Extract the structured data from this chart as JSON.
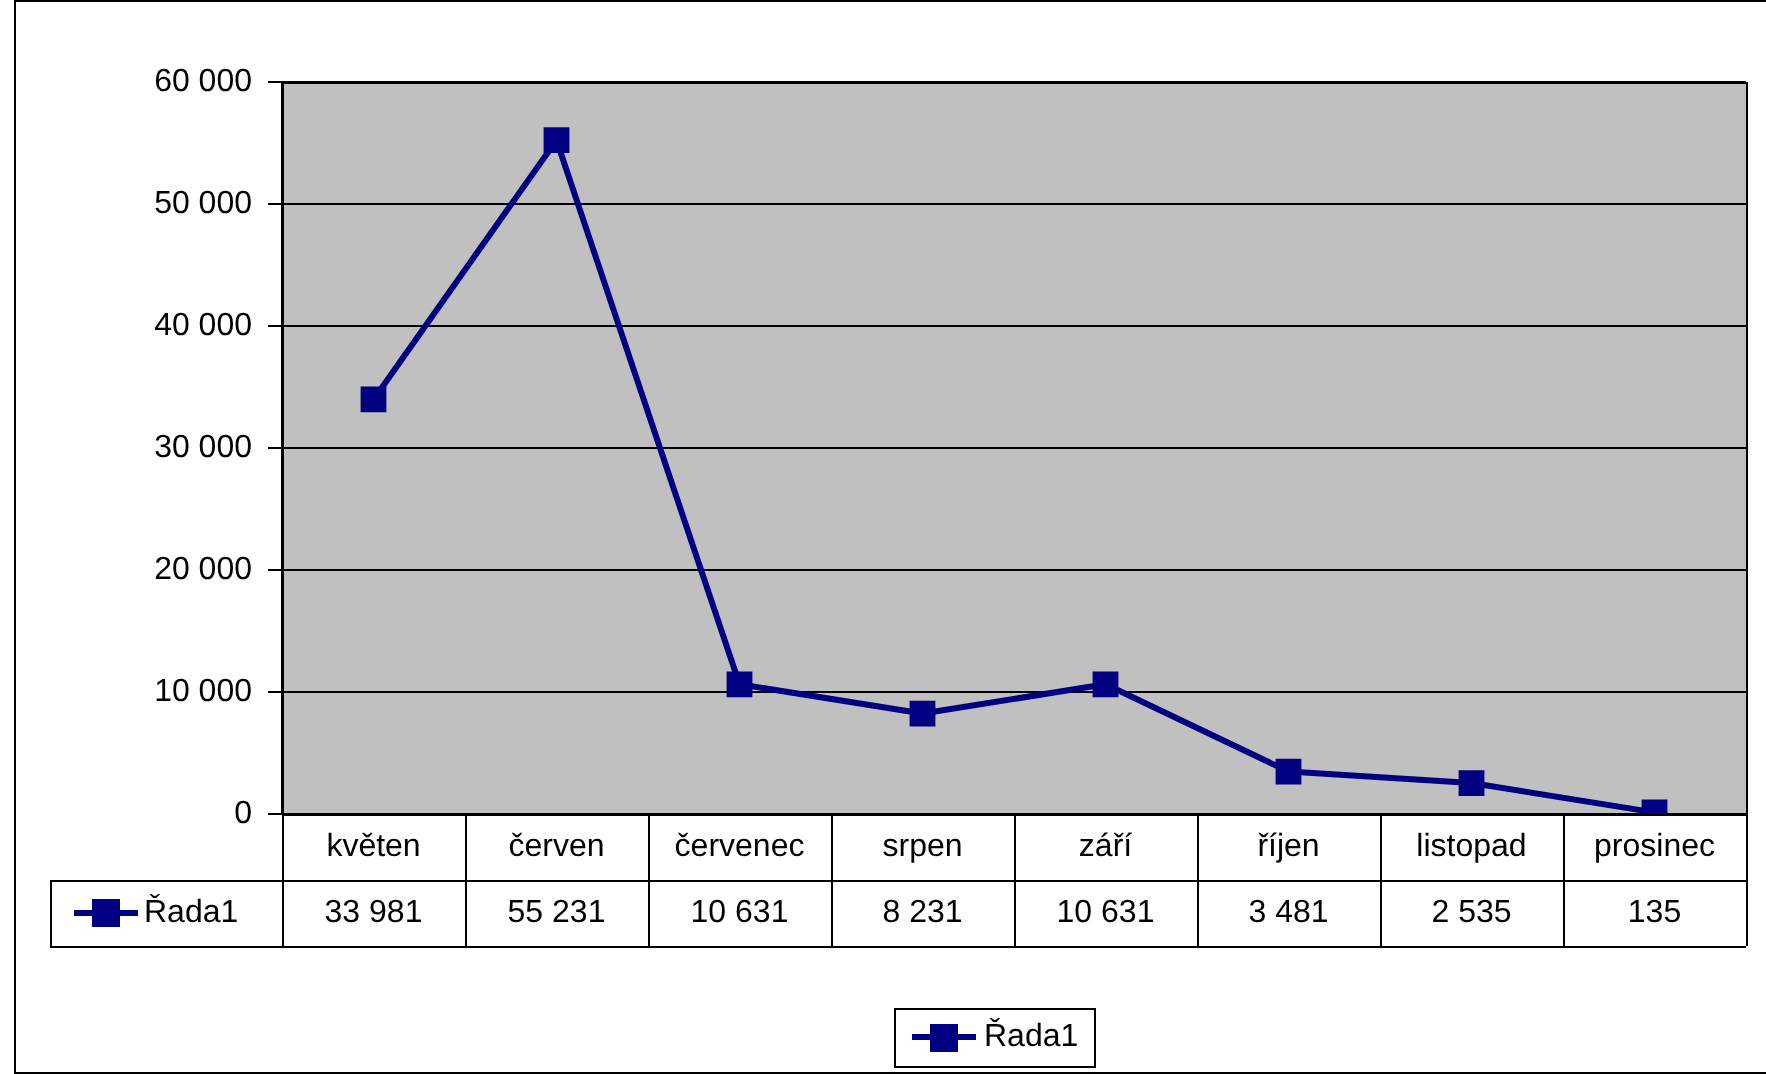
{
  "chart_data": {
    "type": "line",
    "categories": [
      "květen",
      "červen",
      "červenec",
      "srpen",
      "září",
      "říjen",
      "listopad",
      "prosinec"
    ],
    "series": [
      {
        "name": "Řada1",
        "color": "#000080",
        "values": [
          33981,
          55231,
          10631,
          8231,
          10631,
          3481,
          2535,
          135
        ]
      }
    ],
    "ylim": [
      0,
      60000
    ],
    "yticks": [
      0,
      10000,
      20000,
      30000,
      40000,
      50000,
      60000
    ],
    "grid": "y",
    "legend": "bottom",
    "marker": "square",
    "line_style": "solid",
    "data_labels": true
  }
}
